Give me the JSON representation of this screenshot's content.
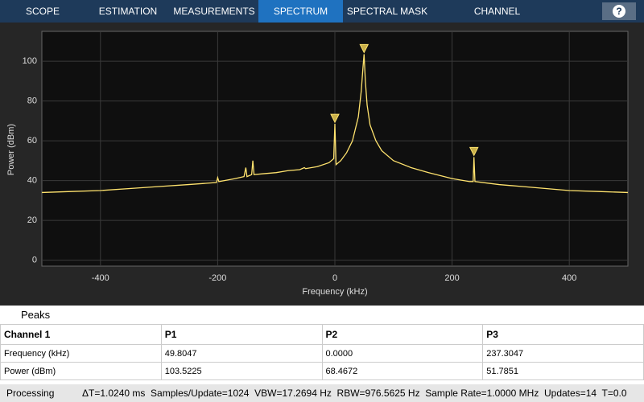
{
  "toolbar": {
    "tabs": [
      "SCOPE",
      "ESTIMATION",
      "MEASUREMENTS",
      "SPECTRUM",
      "SPECTRAL MASK",
      "CHANNEL MEASUREMENTS"
    ],
    "active": 3,
    "help": "?"
  },
  "chart_data": {
    "type": "line",
    "xlabel": "Frequency (kHz)",
    "ylabel": "Power (dBm)",
    "x": [
      -500,
      -450,
      -400,
      -350,
      -300,
      -250,
      -202,
      -200,
      -198,
      -170,
      -155,
      -152,
      -150,
      -142,
      -140,
      -138,
      -120,
      -100,
      -80,
      -60,
      -52,
      -50,
      -30,
      -10,
      -2,
      0,
      2,
      10,
      20,
      30,
      40,
      45,
      48,
      49.8047,
      52,
      55,
      60,
      70,
      80,
      100,
      130,
      160,
      200,
      230,
      236,
      237.3047,
      239,
      280,
      320,
      360,
      400,
      450,
      500
    ],
    "series": [
      {
        "name": "Channel 1",
        "color": "#ffe36e",
        "values": [
          34,
          34.5,
          35,
          36,
          37,
          38,
          39,
          41.5,
          39.5,
          41,
          42,
          46.5,
          42,
          43,
          50,
          43,
          43.5,
          44,
          45,
          45.5,
          46.5,
          46,
          47,
          49,
          51,
          68.5,
          48,
          50,
          54,
          60,
          72,
          85,
          97,
          103.5,
          90,
          78,
          68,
          60,
          55,
          50,
          46.5,
          44,
          41,
          39.5,
          39.5,
          51.8,
          39.5,
          38,
          37,
          36,
          35,
          34.5,
          34
        ]
      }
    ],
    "markers": {
      "x": [
        49.8047,
        0,
        237.3047
      ],
      "y": [
        103.5225,
        68.4672,
        51.7851
      ]
    },
    "xlim": [
      -500,
      500
    ],
    "ylim": [
      -3,
      115
    ],
    "xticks": [
      -400,
      -200,
      0,
      200,
      400
    ],
    "yticks": [
      0,
      20,
      40,
      60,
      80,
      100
    ],
    "grid": true
  },
  "peaks": {
    "title": "Peaks",
    "header": [
      "Channel 1",
      "P1",
      "P2",
      "P3"
    ],
    "rows": [
      [
        "Frequency (kHz)",
        "49.8047",
        "0.0000",
        "237.3047"
      ],
      [
        "Power (dBm)",
        "103.5225",
        "68.4672",
        "51.7851"
      ]
    ]
  },
  "status": {
    "state": "Processing",
    "info": "ΔT=1.0240 ms  Samples/Update=1024  VBW=17.2694 Hz  RBW=976.5625 Hz  Sample Rate=1.0000 MHz  Updates=14  T=0.0"
  }
}
